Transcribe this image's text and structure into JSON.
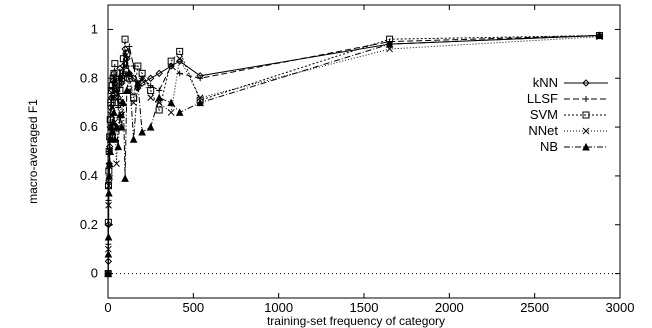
{
  "chart_data": {
    "type": "line",
    "title": "",
    "xlabel": "training-set frequency of category",
    "ylabel": "macro-averaged F1",
    "xlim": [
      0,
      3000
    ],
    "ylim": [
      -0.1,
      1.1
    ],
    "x_ticks": [
      0,
      500,
      1000,
      1500,
      2000,
      2500,
      3000
    ],
    "y_ticks": [
      0,
      0.2,
      0.4,
      0.6,
      0.8,
      1
    ],
    "x_tick_labels": [
      "0",
      "500",
      "1000",
      "1500",
      "2000",
      "2500",
      "3000"
    ],
    "y_tick_labels": [
      "0",
      "0.2",
      "0.4",
      "0.6",
      "0.8",
      "1"
    ],
    "grid": false,
    "legend_position": "right",
    "reference_line": {
      "y": 0,
      "style": "dotted"
    },
    "series": [
      {
        "name": "kNN",
        "marker": "diamond",
        "dash": "",
        "x": [
          1,
          2,
          3,
          5,
          7,
          10,
          13,
          16,
          20,
          25,
          30,
          35,
          40,
          50,
          60,
          70,
          80,
          90,
          100,
          110,
          125,
          150,
          175,
          200,
          250,
          300,
          370,
          420,
          540,
          1650,
          2880
        ],
        "y": [
          0.0,
          0.05,
          0.2,
          0.38,
          0.45,
          0.52,
          0.6,
          0.68,
          0.72,
          0.75,
          0.79,
          0.82,
          0.78,
          0.8,
          0.72,
          0.84,
          0.78,
          0.85,
          0.92,
          0.88,
          0.82,
          0.8,
          0.76,
          0.78,
          0.8,
          0.82,
          0.85,
          0.87,
          0.81,
          0.94,
          0.975
        ]
      },
      {
        "name": "LLSF",
        "marker": "plus",
        "dash": "6,3",
        "x": [
          1,
          2,
          3,
          5,
          7,
          10,
          13,
          16,
          20,
          25,
          30,
          35,
          40,
          50,
          60,
          70,
          80,
          90,
          100,
          110,
          125,
          150,
          175,
          200,
          250,
          300,
          370,
          420,
          540,
          1650,
          2880
        ],
        "y": [
          0.0,
          0.12,
          0.3,
          0.4,
          0.5,
          0.55,
          0.62,
          0.65,
          0.7,
          0.72,
          0.76,
          0.8,
          0.73,
          0.75,
          0.68,
          0.8,
          0.78,
          0.82,
          0.9,
          0.85,
          0.93,
          0.85,
          0.76,
          0.8,
          0.77,
          0.75,
          0.85,
          0.82,
          0.8,
          0.95,
          0.975
        ]
      },
      {
        "name": "SVM",
        "marker": "square",
        "dash": "2,2",
        "x": [
          1,
          2,
          3,
          5,
          7,
          10,
          13,
          16,
          20,
          25,
          30,
          35,
          40,
          50,
          60,
          70,
          80,
          90,
          100,
          110,
          125,
          150,
          175,
          200,
          250,
          300,
          370,
          420,
          540,
          1650,
          2880
        ],
        "y": [
          0.0,
          0.21,
          0.36,
          0.42,
          0.5,
          0.56,
          0.63,
          0.7,
          0.75,
          0.77,
          0.8,
          0.82,
          0.86,
          0.76,
          0.7,
          0.75,
          0.8,
          0.88,
          0.96,
          0.9,
          0.8,
          0.72,
          0.85,
          0.82,
          0.75,
          0.67,
          0.87,
          0.91,
          0.71,
          0.96,
          0.975
        ]
      },
      {
        "name": "NNet",
        "marker": "cross",
        "dash": "1,2",
        "x": [
          1,
          2,
          3,
          5,
          7,
          10,
          13,
          16,
          20,
          25,
          30,
          35,
          40,
          50,
          60,
          70,
          80,
          90,
          100,
          110,
          125,
          150,
          175,
          200,
          250,
          300,
          370,
          420,
          540,
          1650,
          2880
        ],
        "y": [
          0.0,
          0.1,
          0.28,
          0.36,
          0.44,
          0.5,
          0.55,
          0.6,
          0.65,
          0.68,
          0.72,
          0.75,
          0.62,
          0.45,
          0.6,
          0.7,
          0.65,
          0.8,
          0.85,
          0.82,
          0.75,
          0.7,
          0.78,
          0.8,
          0.72,
          0.7,
          0.66,
          0.88,
          0.72,
          0.92,
          0.97
        ]
      },
      {
        "name": "NB",
        "marker": "triangle",
        "dash": "6,2,1,2",
        "x": [
          1,
          2,
          3,
          5,
          7,
          10,
          13,
          16,
          20,
          25,
          30,
          35,
          40,
          50,
          60,
          70,
          80,
          90,
          100,
          110,
          125,
          150,
          175,
          200,
          250,
          300,
          370,
          420,
          540,
          1650,
          2880
        ],
        "y": [
          0.0,
          0.08,
          0.15,
          0.33,
          0.4,
          0.45,
          0.5,
          0.55,
          0.6,
          0.58,
          0.62,
          0.66,
          0.55,
          0.6,
          0.52,
          0.65,
          0.6,
          0.7,
          0.39,
          0.75,
          0.82,
          0.55,
          0.78,
          0.58,
          0.6,
          0.72,
          0.7,
          0.66,
          0.7,
          0.94,
          0.975
        ]
      }
    ]
  }
}
